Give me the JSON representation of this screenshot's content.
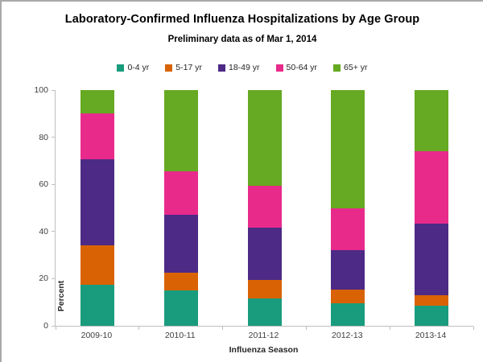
{
  "header": {
    "title": "Laboratory-Confirmed Influenza Hospitalizations by Age Group",
    "subtitle": "Preliminary data as of Mar 1, 2014"
  },
  "chart_data": {
    "type": "bar",
    "stacked": true,
    "title": "Laboratory-Confirmed Influenza Hospitalizations by Age Group",
    "subtitle": "Preliminary data as of Mar 1, 2014",
    "xlabel": "Influenza Season",
    "ylabel": "Percent",
    "ylim": [
      0,
      100
    ],
    "yticks": [
      0,
      20,
      40,
      60,
      80,
      100
    ],
    "grid": false,
    "legend_position": "top",
    "categories": [
      "2009-10",
      "2010-11",
      "2011-12",
      "2012-13",
      "2013-14"
    ],
    "series": [
      {
        "name": "0-4 yr",
        "color": "#199c7d",
        "values": [
          17.5,
          15.0,
          11.5,
          9.5,
          8.5
        ]
      },
      {
        "name": "5-17 yr",
        "color": "#d96304",
        "values": [
          16.5,
          7.5,
          8.0,
          6.0,
          4.5
        ]
      },
      {
        "name": "18-49 yr",
        "color": "#4c2a85",
        "values": [
          36.5,
          24.5,
          22.0,
          16.5,
          30.5
        ]
      },
      {
        "name": "50-64 yr",
        "color": "#e82a8b",
        "values": [
          19.5,
          18.5,
          18.0,
          18.0,
          30.5
        ]
      },
      {
        "name": "65+ yr",
        "color": "#66a922",
        "values": [
          10.0,
          34.5,
          40.5,
          50.0,
          26.0
        ]
      }
    ]
  },
  "style": {
    "axis_color": "#bfbfbf",
    "tick_text_color": "#404040",
    "frame_border_color": "#a9a9a9",
    "background": "#ffffff"
  }
}
